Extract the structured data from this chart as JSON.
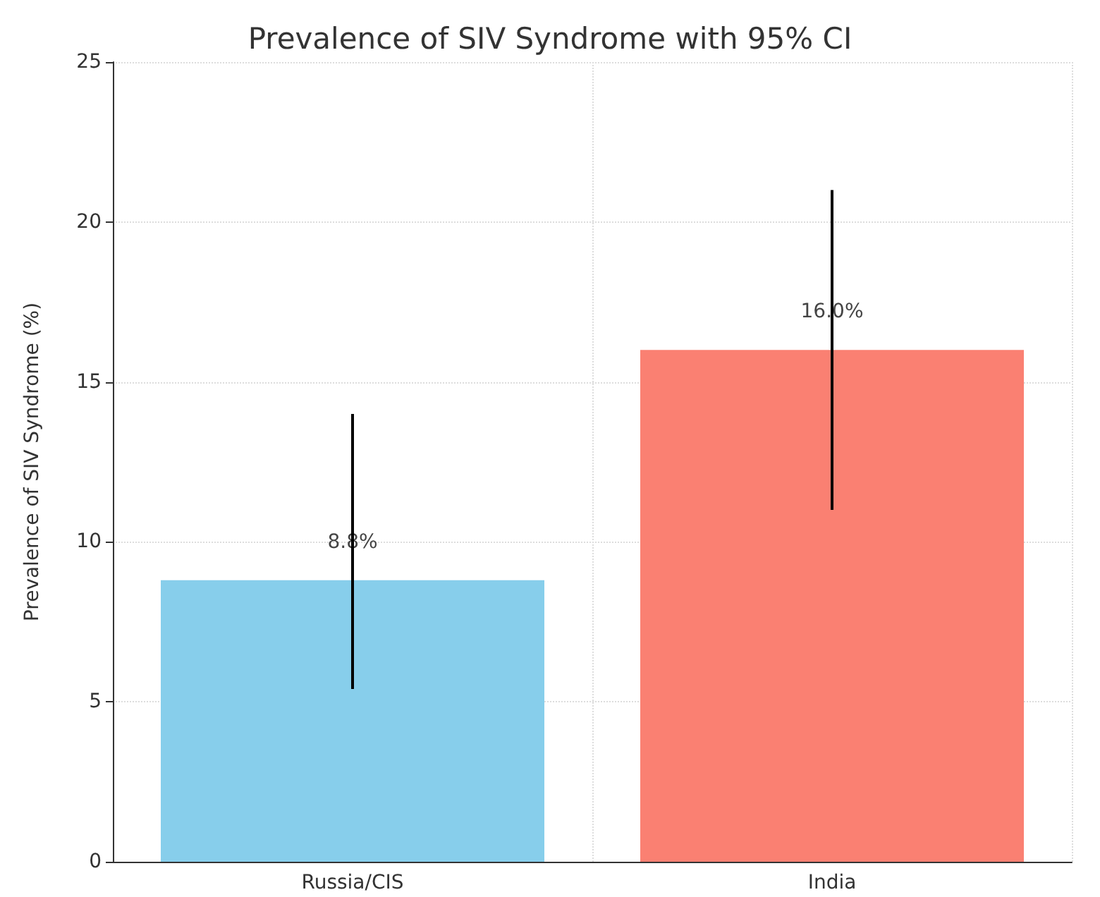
{
  "chart_data": {
    "type": "bar",
    "title": "Prevalence of SIV Syndrome with 95% CI",
    "ylabel": "Prevalence of SIV Syndrome (%)",
    "categories": [
      "Russia/CIS",
      "India"
    ],
    "values": [
      8.8,
      16.0
    ],
    "colors": [
      "#87ceeb",
      "#fa8072"
    ],
    "errors": [
      [
        5.4,
        14
      ],
      [
        11,
        21
      ]
    ],
    "value_labels": [
      "8.8%",
      "16.0%"
    ],
    "ylim": [
      0,
      25
    ],
    "yticks": [
      0,
      5,
      10,
      15,
      20,
      25
    ],
    "grid": true
  }
}
